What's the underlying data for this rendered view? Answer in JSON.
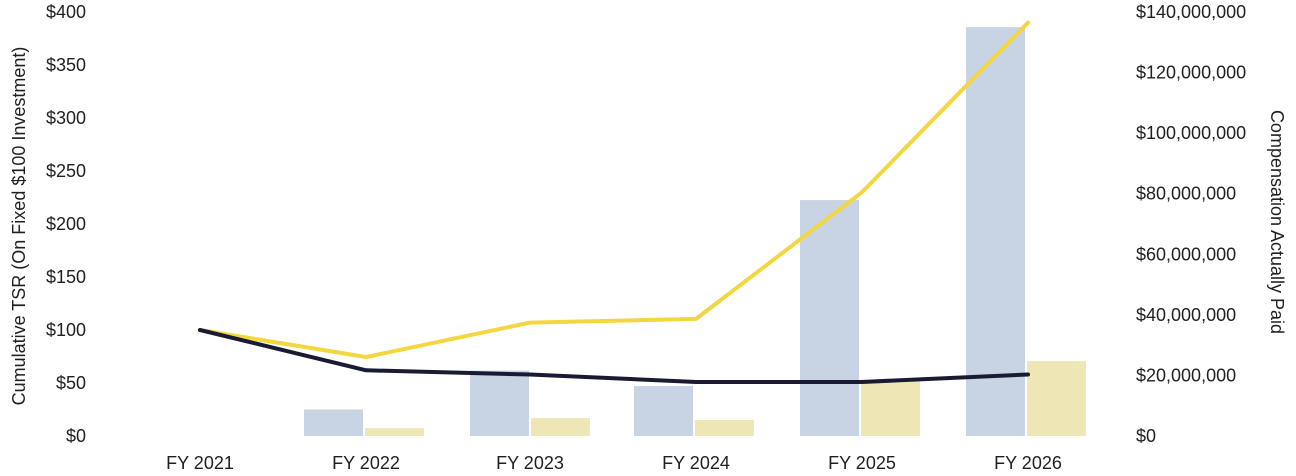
{
  "chart_data": {
    "type": "bar",
    "categories": [
      "FY 2021",
      "FY 2022",
      "FY 2023",
      "FY 2024",
      "FY 2025",
      "FY 2026"
    ],
    "series": [
      {
        "kind": "bar",
        "axis": "right",
        "color": "#c8d3e3",
        "values": [
          0,
          8750000,
          21600000,
          16500000,
          77900000,
          135000000
        ]
      },
      {
        "kind": "bar",
        "axis": "right",
        "color": "#eee6b4",
        "values": [
          0,
          2600000,
          5900000,
          5300000,
          18600000,
          24700000
        ]
      },
      {
        "kind": "line",
        "axis": "left",
        "color": "#f2d740",
        "values": [
          100,
          74.5,
          107,
          110.5,
          230,
          390
        ]
      },
      {
        "kind": "line",
        "axis": "left",
        "color": "#1b1a33",
        "values": [
          100,
          62,
          58,
          51,
          51,
          58
        ]
      }
    ],
    "y_left": {
      "label": "Cumulative TSR (On Fixed $100 Investment)",
      "range": [
        0,
        400
      ],
      "ticks": [
        "$0",
        "$50",
        "$100",
        "$150",
        "$200",
        "$250",
        "$300",
        "$350",
        "$400"
      ]
    },
    "y_right": {
      "label": "Compensation Actually Paid",
      "range": [
        0,
        140000000
      ],
      "ticks": [
        "$0",
        "$20,000,000",
        "$40,000,000",
        "$60,000,000",
        "$80,000,000",
        "$100,000,000",
        "$120,000,000",
        "$140,000,000"
      ]
    },
    "grid": false,
    "legend": "none"
  }
}
